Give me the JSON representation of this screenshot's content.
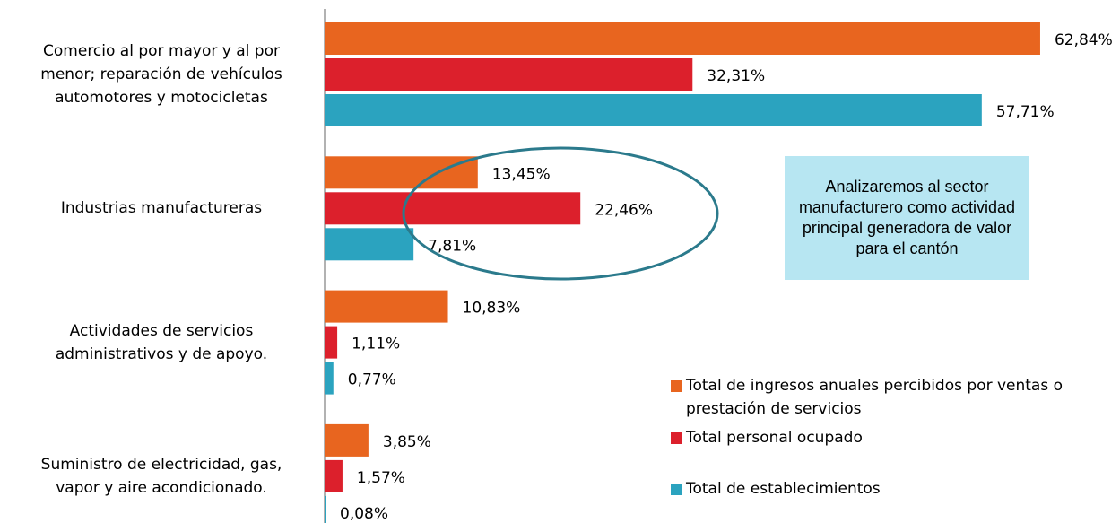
{
  "chart_data": {
    "type": "hbar",
    "categories": [
      "Comercio al por mayor y al por menor; reparación de vehículos automotores y motocicletas",
      "Industrias manufactureras",
      "Actividades de servicios administrativos y de apoyo.",
      "Suministro de electricidad, gas, vapor y aire acondicionado."
    ],
    "series": [
      {
        "name": "Total de ingresos anuales percibidos por ventas o prestación de servicios",
        "color": "#e8651f",
        "values": [
          62.84,
          13.45,
          10.83,
          3.85
        ],
        "value_labels": [
          "62,84%",
          "13,45%",
          "10,83%",
          "3,85%"
        ]
      },
      {
        "name": "Total personal ocupado",
        "color": "#dc202c",
        "values": [
          32.31,
          22.46,
          1.11,
          1.57
        ],
        "value_labels": [
          "32,31%",
          "22,46%",
          "1,11%",
          "1,57%"
        ]
      },
      {
        "name": "Total de establecimientos",
        "color": "#2ba3bf",
        "values": [
          57.71,
          7.81,
          0.77,
          0.08
        ],
        "value_labels": [
          "57,71%",
          "7,81%",
          "0,77%",
          "0,08%"
        ]
      }
    ],
    "xlim": [
      0,
      63
    ],
    "annotation": "Analizaremos al sector manufacturero como  actividad principal generadora de valor para el cantón"
  }
}
